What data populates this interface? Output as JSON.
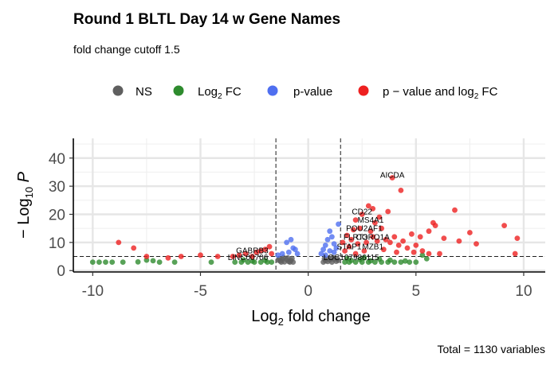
{
  "chart_data": {
    "type": "scatter",
    "title": "Round 1 BLTL Day 14 w Gene Names",
    "subtitle": "fold change cutoff 1.5",
    "caption": "Total = 1130 variables",
    "xlabel": "Log2 fold change",
    "ylabel": "−Log10 P",
    "xlim": [
      -10.9,
      11.0
    ],
    "ylim": [
      -0.5,
      47
    ],
    "x_ticks": [
      -10,
      -5,
      0,
      5,
      10
    ],
    "y_ticks": [
      0,
      10,
      20,
      30,
      40
    ],
    "x_tick_labels": [
      "-10",
      "-5",
      "0",
      "5",
      "10"
    ],
    "y_tick_labels": [
      "0",
      "10",
      "20",
      "30",
      "40"
    ],
    "grid": true,
    "legend_position": "top",
    "cutoffs": {
      "fold_change_x": [
        -1.5,
        1.5
      ],
      "pvalue_y": 5
    },
    "colors": {
      "NS": "#5f5f5f",
      "FC": "#2e8b2e",
      "P": "#4f6ff0",
      "FC_P": "#ee2020"
    },
    "legend": [
      {
        "key": "NS",
        "label": "NS"
      },
      {
        "key": "FC",
        "label": "Log2 FC"
      },
      {
        "key": "P",
        "label": "p-value"
      },
      {
        "key": "FC_P",
        "label": "p − value and log2 FC"
      }
    ],
    "series": [
      {
        "key": "NS",
        "points": [
          [
            0.7,
            3.0
          ],
          [
            0.8,
            3.5
          ],
          [
            0.9,
            3.2
          ],
          [
            1.0,
            3.8
          ],
          [
            1.1,
            3.0
          ],
          [
            1.2,
            4.0
          ],
          [
            1.3,
            3.3
          ],
          [
            1.4,
            3.6
          ],
          [
            0.75,
            4.2
          ],
          [
            0.95,
            4.4
          ],
          [
            1.15,
            4.6
          ],
          [
            1.35,
            4.1
          ],
          [
            -0.7,
            3.0
          ],
          [
            -0.8,
            3.6
          ],
          [
            -0.9,
            3.2
          ],
          [
            -1.0,
            3.9
          ],
          [
            -1.1,
            3.1
          ],
          [
            -1.2,
            4.1
          ],
          [
            -1.3,
            3.4
          ],
          [
            -1.4,
            3.7
          ],
          [
            -0.75,
            4.3
          ],
          [
            -0.95,
            4.5
          ],
          [
            -1.15,
            4.7
          ],
          [
            -1.35,
            4.2
          ],
          [
            -0.85,
            3.0
          ],
          [
            -1.25,
            3.0
          ]
        ]
      },
      {
        "key": "FC",
        "points": [
          [
            -10.0,
            3.0
          ],
          [
            -9.7,
            3.0
          ],
          [
            -9.4,
            3.0
          ],
          [
            -9.1,
            3.0
          ],
          [
            -8.6,
            3.0
          ],
          [
            -7.9,
            3.1
          ],
          [
            -7.5,
            3.7
          ],
          [
            -7.2,
            3.5
          ],
          [
            -6.9,
            3.0
          ],
          [
            -6.2,
            3.0
          ],
          [
            -4.5,
            3.0
          ],
          [
            -3.4,
            3.0
          ],
          [
            -3.1,
            3.0
          ],
          [
            -2.8,
            3.0
          ],
          [
            -2.5,
            3.0
          ],
          [
            -2.2,
            3.0
          ],
          [
            -1.9,
            3.0
          ],
          [
            -1.7,
            3.0
          ],
          [
            -2.0,
            3.6
          ],
          [
            -2.6,
            3.4
          ],
          [
            -3.0,
            3.8
          ],
          [
            1.7,
            3.0
          ],
          [
            1.9,
            3.0
          ],
          [
            2.2,
            3.0
          ],
          [
            2.5,
            3.0
          ],
          [
            2.8,
            3.0
          ],
          [
            3.1,
            3.0
          ],
          [
            3.4,
            3.0
          ],
          [
            3.7,
            3.0
          ],
          [
            4.0,
            3.0
          ],
          [
            4.3,
            3.0
          ],
          [
            4.7,
            3.0
          ],
          [
            5.0,
            3.0
          ],
          [
            5.3,
            5.5
          ],
          [
            5.5,
            4.2
          ],
          [
            2.0,
            3.6
          ],
          [
            2.4,
            3.9
          ],
          [
            2.9,
            3.5
          ],
          [
            3.3,
            4.1
          ],
          [
            3.8,
            3.7
          ],
          [
            4.5,
            3.4
          ],
          [
            1.8,
            4.3
          ],
          [
            2.6,
            4.5
          ]
        ]
      },
      {
        "key": "P",
        "points": [
          [
            -1.0,
            10.0
          ],
          [
            -0.8,
            11.0
          ],
          [
            -0.7,
            8.0
          ],
          [
            -0.9,
            6.5
          ],
          [
            -0.6,
            7.5
          ],
          [
            -1.2,
            6.0
          ],
          [
            -1.4,
            5.5
          ],
          [
            -0.5,
            6.0
          ],
          [
            0.6,
            6.0
          ],
          [
            0.7,
            7.5
          ],
          [
            0.8,
            9.0
          ],
          [
            0.9,
            11.0
          ],
          [
            1.0,
            14.0
          ],
          [
            1.1,
            12.0
          ],
          [
            1.2,
            9.5
          ],
          [
            1.3,
            8.0
          ],
          [
            1.4,
            16.5
          ],
          [
            1.0,
            7.0
          ],
          [
            0.8,
            5.5
          ],
          [
            1.2,
            6.5
          ]
        ]
      },
      {
        "key": "FC_P",
        "points": [
          [
            3.9,
            33.0
          ],
          [
            4.3,
            28.5
          ],
          [
            2.5,
            20.0
          ],
          [
            3.1,
            17.0
          ],
          [
            3.4,
            15.0
          ],
          [
            2.9,
            14.0
          ],
          [
            3.0,
            12.0
          ],
          [
            3.8,
            10.0
          ],
          [
            4.2,
            9.0
          ],
          [
            3.5,
            7.5
          ],
          [
            4.6,
            8.0
          ],
          [
            2.2,
            6.0
          ],
          [
            2.6,
            7.0
          ],
          [
            1.7,
            7.0
          ],
          [
            1.9,
            8.5
          ],
          [
            2.0,
            11.0
          ],
          [
            2.3,
            9.5
          ],
          [
            2.7,
            10.0
          ],
          [
            3.2,
            10.5
          ],
          [
            3.6,
            11.0
          ],
          [
            4.0,
            12.0
          ],
          [
            4.4,
            10.5
          ],
          [
            4.8,
            13.0
          ],
          [
            5.2,
            12.0
          ],
          [
            5.6,
            14.0
          ],
          [
            5.8,
            17.0
          ],
          [
            5.9,
            16.0
          ],
          [
            6.3,
            11.5
          ],
          [
            6.8,
            21.5
          ],
          [
            7.0,
            10.5
          ],
          [
            7.5,
            13.5
          ],
          [
            7.8,
            9.5
          ],
          [
            9.1,
            16.0
          ],
          [
            9.6,
            6.0
          ],
          [
            9.7,
            11.5
          ],
          [
            5.0,
            9.0
          ],
          [
            5.3,
            7.0
          ],
          [
            5.6,
            6.0
          ],
          [
            4.9,
            6.5
          ],
          [
            6.1,
            6.0
          ],
          [
            2.1,
            14.5
          ],
          [
            2.8,
            23.0
          ],
          [
            3.3,
            19.0
          ],
          [
            3.7,
            21.0
          ],
          [
            1.6,
            10.0
          ],
          [
            1.8,
            12.5
          ],
          [
            2.4,
            15.0
          ],
          [
            4.1,
            6.5
          ],
          [
            2.2,
            18.0
          ],
          [
            3.0,
            22.0
          ],
          [
            -8.8,
            10.0
          ],
          [
            -8.1,
            8.0
          ],
          [
            -7.5,
            5.0
          ],
          [
            -6.5,
            4.5
          ],
          [
            -5.0,
            5.5
          ],
          [
            -3.5,
            5.0
          ],
          [
            -3.2,
            5.5
          ],
          [
            -2.9,
            6.0
          ],
          [
            -2.6,
            5.0
          ],
          [
            -2.4,
            6.5
          ],
          [
            -2.2,
            7.0
          ],
          [
            -2.0,
            7.5
          ],
          [
            -1.8,
            8.5
          ],
          [
            -1.7,
            6.0
          ],
          [
            -4.2,
            5.0
          ],
          [
            -5.9,
            5.0
          ]
        ]
      }
    ],
    "annotations": [
      {
        "label": "AICDA",
        "x": 3.9,
        "y": 33.0
      },
      {
        "label": "CD22",
        "x": 2.5,
        "y": 20.0
      },
      {
        "label": "MS4A1",
        "x": 2.9,
        "y": 17.0
      },
      {
        "label": "POU2AF1",
        "x": 2.6,
        "y": 14.0
      },
      {
        "label": "FLRT3",
        "x": 2.2,
        "y": 11.0
      },
      {
        "label": "CORO1A",
        "x": 3.0,
        "y": 11.0
      },
      {
        "label": "STAP1",
        "x": 1.9,
        "y": 7.5
      },
      {
        "label": "MZB1",
        "x": 3.0,
        "y": 7.5
      },
      {
        "label": "LOC107986115",
        "x": 2.0,
        "y": 3.8
      },
      {
        "label": "GABRB3",
        "x": -2.6,
        "y": 6.2
      },
      {
        "label": "LINC00706",
        "x": -2.8,
        "y": 3.8
      }
    ]
  }
}
